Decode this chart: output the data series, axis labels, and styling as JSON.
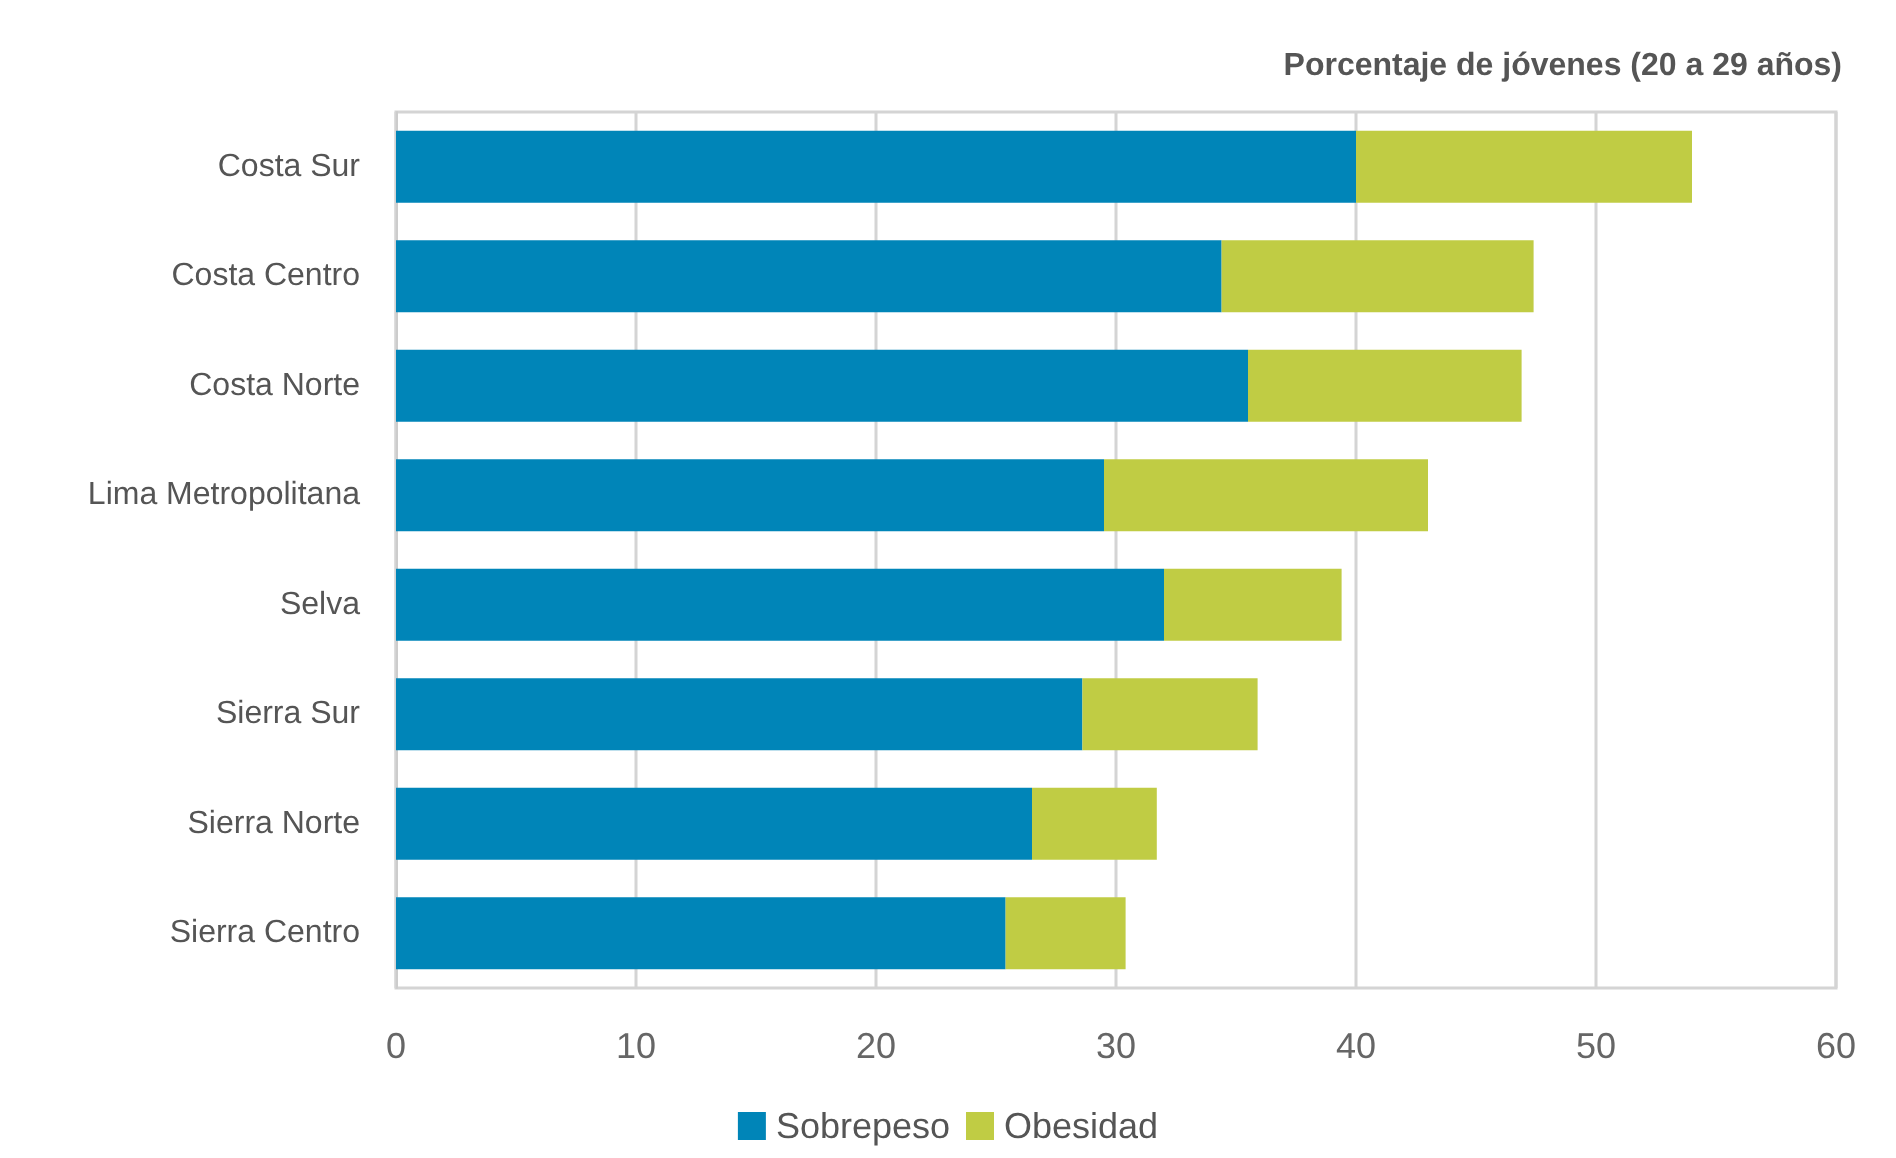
{
  "chart_data": {
    "type": "bar",
    "orientation": "horizontal",
    "stacked": true,
    "title": "Porcentaje de jóvenes (20 a 29 años)",
    "categories": [
      "Costa Sur",
      "Costa Centro",
      "Costa Norte",
      "Lima Metropolitana",
      "Selva",
      "Sierra Sur",
      "Sierra Norte",
      "Sierra Centro"
    ],
    "series": [
      {
        "name": "Sobrepeso",
        "color": "#0085b8",
        "values": [
          40.0,
          34.4,
          35.5,
          29.5,
          32.0,
          28.6,
          26.5,
          25.4
        ]
      },
      {
        "name": "Obesidad",
        "color": "#c0cc44",
        "values": [
          14.0,
          13.0,
          11.4,
          13.5,
          7.4,
          7.3,
          5.2,
          5.0
        ]
      }
    ],
    "xlim": [
      0,
      60
    ],
    "xticks": [
      0,
      10,
      20,
      30,
      40,
      50,
      60
    ],
    "grid": "x",
    "legend": "bottom"
  }
}
